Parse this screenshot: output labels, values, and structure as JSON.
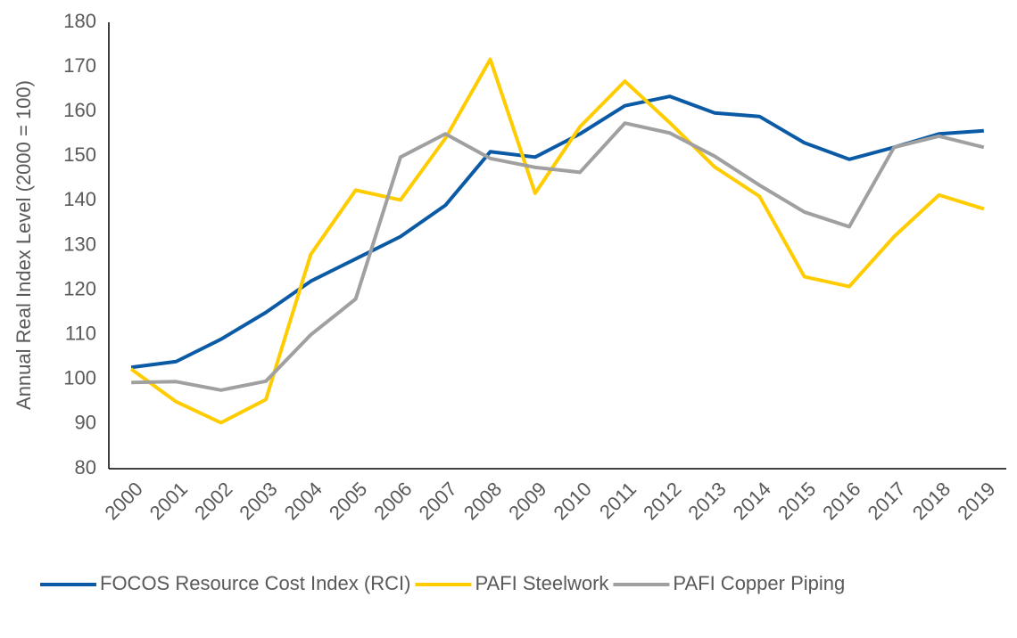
{
  "chart_data": {
    "type": "line",
    "y_label": "Annual Real Index Level (2000 = 100)",
    "categories": [
      "2000",
      "2001",
      "2002",
      "2003",
      "2004",
      "2005",
      "2006",
      "2007",
      "2008",
      "2009",
      "2010",
      "2011",
      "2012",
      "2013",
      "2014",
      "2015",
      "2016",
      "2017",
      "2018",
      "2019"
    ],
    "series": [
      {
        "name": "FOCOS Resource Cost Index (RCI)",
        "color": "#0B5AA5",
        "values": [
          102.7,
          104,
          109,
          115,
          122,
          127,
          132,
          139,
          151,
          149.8,
          155,
          161.3,
          163.4,
          159.7,
          158.9,
          153,
          149.3,
          152,
          155,
          155.7
        ]
      },
      {
        "name": "PAFI Steelwork",
        "color": "#FFCC00",
        "values": [
          102.3,
          95,
          90.3,
          95.5,
          128,
          142.4,
          140.2,
          154,
          171.7,
          141.7,
          156.6,
          166.8,
          157.5,
          147.6,
          141,
          123,
          120.8,
          132,
          141.3,
          138.2
        ]
      },
      {
        "name": "PAFI Copper Piping",
        "color": "#A0A0A0",
        "values": [
          99.3,
          99.5,
          97.6,
          99.6,
          110,
          118,
          149.8,
          155,
          149.5,
          147.5,
          146.4,
          157.4,
          155.2,
          150,
          143.5,
          137.5,
          134.2,
          152,
          154.5,
          152
        ]
      }
    ],
    "ylim": [
      80,
      180
    ],
    "yticks": [
      80,
      90,
      100,
      110,
      120,
      130,
      140,
      150,
      160,
      170,
      180
    ],
    "grid": false,
    "legend": "bottom"
  }
}
